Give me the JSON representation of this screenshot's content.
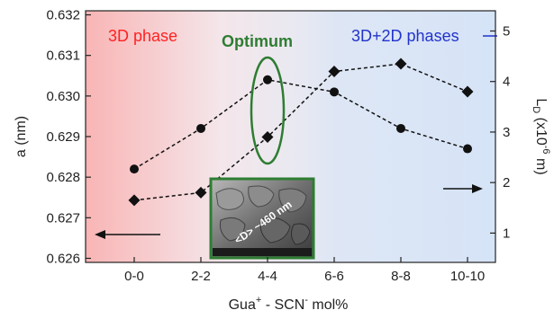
{
  "chart_data": {
    "type": "line",
    "categories": [
      "0-0",
      "2-2",
      "4-4",
      "6-6",
      "8-8",
      "10-10"
    ],
    "xlabel": {
      "main": "Gua",
      "sup1": "+",
      "mid": " - SCN",
      "sup2": "-",
      "tail": " mol%"
    },
    "ylabel_left": "a (nm)",
    "ylabel_right": {
      "main": "L",
      "sub": "D",
      "tail": " (x10",
      "sup": "-6",
      "end": " m)"
    },
    "ylim_left": [
      0.6259,
      0.6321
    ],
    "ylim_right": [
      0.42,
      5.4
    ],
    "yticks_left": [
      "0.626",
      "0.627",
      "0.628",
      "0.629",
      "0.630",
      "0.631",
      "0.632"
    ],
    "yticks_right": [
      "1",
      "2",
      "3",
      "4",
      "5"
    ],
    "series": [
      {
        "axis": "left",
        "marker": "circle",
        "values": [
          0.6282,
          0.6292,
          0.6304,
          0.6301,
          0.6292,
          0.6287
        ]
      },
      {
        "axis": "right",
        "marker": "diamond",
        "values": [
          1.65,
          1.8,
          2.9,
          4.2,
          4.35,
          3.8
        ]
      }
    ],
    "regions": [
      {
        "label": "3D phase",
        "color": "#ff2222"
      },
      {
        "label": "3D+2D phases",
        "color": "#2233cc"
      }
    ],
    "annotation": {
      "label": "Optimum",
      "color": "#2e7d32"
    },
    "inset": {
      "label": "<D> ~460 nm"
    },
    "colors": {
      "left_region": "#fbdcdc",
      "right_region": "#dde8f6",
      "line": "#111111"
    }
  }
}
